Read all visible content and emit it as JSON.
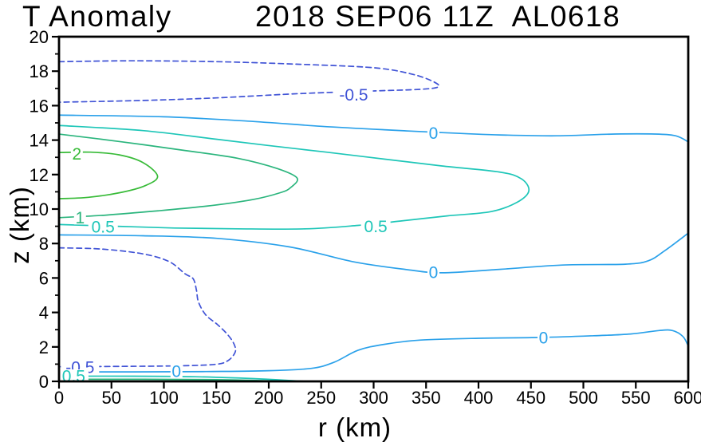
{
  "title": {
    "left": "T Anomaly",
    "right": "2018 SEP06 11Z  AL0618"
  },
  "axes": {
    "x": {
      "label": "r (km)",
      "min": 0,
      "max": 600,
      "ticks": [
        0,
        50,
        100,
        150,
        200,
        250,
        300,
        350,
        400,
        450,
        500,
        550,
        600
      ]
    },
    "y": {
      "label": "z (km)",
      "min": 0,
      "max": 20,
      "ticks": [
        0,
        2,
        4,
        6,
        8,
        10,
        12,
        14,
        16,
        18,
        20
      ],
      "minor_ticks": [
        1,
        3,
        5,
        7,
        9,
        11,
        13,
        15,
        17,
        19
      ]
    }
  },
  "colors": {
    "frame": "#000000",
    "neg05": "#4053d6",
    "zero": "#2aa1ea",
    "pos05": "#1ec6b8",
    "pos1": "#2bb57d",
    "pos2": "#38bb38"
  },
  "chart_data": {
    "type": "contour",
    "title": "T Anomaly",
    "subtitle": "2018 SEP06 11Z  AL0618",
    "xlabel": "r (km)",
    "ylabel": "z (km)",
    "xlim": [
      0,
      600
    ],
    "ylim": [
      0,
      20
    ],
    "levels": [
      -0.5,
      0,
      0.5,
      1,
      2
    ],
    "grid": false,
    "legend": "none",
    "contours": [
      {
        "level": -0.5,
        "color": "#4053d6",
        "style": "dashed",
        "points": [
          [
            0,
            18.55
          ],
          [
            70,
            18.6
          ],
          [
            150,
            18.55
          ],
          [
            230,
            18.4
          ],
          [
            300,
            18.2
          ],
          [
            335,
            17.85
          ],
          [
            355,
            17.45
          ],
          [
            362,
            17.1
          ],
          [
            345,
            16.95
          ],
          [
            300,
            16.85
          ],
          [
            230,
            16.7
          ],
          [
            150,
            16.45
          ],
          [
            80,
            16.3
          ],
          [
            0,
            16.2
          ]
        ]
      },
      {
        "level": -0.5,
        "color": "#4053d6",
        "style": "dashed",
        "points": [
          [
            0,
            7.75
          ],
          [
            40,
            7.68
          ],
          [
            80,
            7.4
          ],
          [
            105,
            6.95
          ],
          [
            120,
            6.25
          ],
          [
            128,
            5.95
          ],
          [
            131,
            5.3
          ],
          [
            133,
            4.6
          ],
          [
            140,
            3.85
          ],
          [
            151,
            3.3
          ],
          [
            161,
            2.7
          ],
          [
            167,
            2.15
          ],
          [
            168,
            1.7
          ],
          [
            161,
            1.2
          ],
          [
            148,
            0.98
          ],
          [
            110,
            0.9
          ],
          [
            60,
            0.87
          ],
          [
            0,
            0.85
          ]
        ]
      },
      {
        "level": 0,
        "color": "#2aa1ea",
        "style": "solid",
        "points": [
          [
            0,
            15.45
          ],
          [
            100,
            15.35
          ],
          [
            180,
            15.1
          ],
          [
            250,
            14.8
          ],
          [
            310,
            14.6
          ],
          [
            360,
            14.45
          ],
          [
            420,
            14.3
          ],
          [
            475,
            14.25
          ],
          [
            530,
            14.35
          ],
          [
            568,
            14.35
          ],
          [
            588,
            14.25
          ],
          [
            600,
            13.9
          ]
        ]
      },
      {
        "level": 0,
        "color": "#2aa1ea",
        "style": "solid",
        "points": [
          [
            0,
            8.5
          ],
          [
            80,
            8.45
          ],
          [
            150,
            8.3
          ],
          [
            220,
            7.8
          ],
          [
            280,
            6.95
          ],
          [
            330,
            6.5
          ],
          [
            365,
            6.3
          ],
          [
            420,
            6.5
          ],
          [
            480,
            6.75
          ],
          [
            540,
            6.8
          ],
          [
            562,
            7.0
          ],
          [
            578,
            7.6
          ],
          [
            600,
            8.6
          ]
        ]
      },
      {
        "level": 0,
        "color": "#2aa1ea",
        "style": "solid",
        "points": [
          [
            0,
            0.55
          ],
          [
            70,
            0.55
          ],
          [
            140,
            0.57
          ],
          [
            200,
            0.62
          ],
          [
            240,
            0.75
          ],
          [
            262,
            1.1
          ],
          [
            285,
            1.8
          ],
          [
            310,
            2.15
          ],
          [
            345,
            2.4
          ],
          [
            400,
            2.5
          ],
          [
            460,
            2.55
          ],
          [
            510,
            2.65
          ],
          [
            545,
            2.75
          ],
          [
            572,
            2.95
          ],
          [
            585,
            2.95
          ],
          [
            595,
            2.6
          ],
          [
            600,
            2.05
          ]
        ]
      },
      {
        "level": 0.5,
        "color": "#1ec6b8",
        "style": "solid",
        "points": [
          [
            0,
            14.85
          ],
          [
            80,
            14.55
          ],
          [
            150,
            14.05
          ],
          [
            205,
            13.65
          ],
          [
            255,
            13.3
          ],
          [
            310,
            12.9
          ],
          [
            365,
            12.5
          ],
          [
            420,
            12.15
          ],
          [
            441,
            11.75
          ],
          [
            448,
            11.05
          ],
          [
            437,
            10.4
          ],
          [
            412,
            9.85
          ],
          [
            370,
            9.6
          ],
          [
            325,
            9.3
          ],
          [
            285,
            9.05
          ],
          [
            235,
            8.85
          ],
          [
            170,
            8.85
          ],
          [
            110,
            8.9
          ],
          [
            55,
            9.0
          ],
          [
            0,
            9.1
          ]
        ]
      },
      {
        "level": 0.5,
        "color": "#1ec6b8",
        "style": "solid",
        "points": [
          [
            0,
            0.3
          ],
          [
            70,
            0.3
          ],
          [
            130,
            0.27
          ],
          [
            185,
            0.16
          ],
          [
            235,
            0.0
          ]
        ]
      },
      {
        "level": 1,
        "color": "#2bb57d",
        "style": "solid",
        "points": [
          [
            0,
            14.35
          ],
          [
            60,
            13.9
          ],
          [
            120,
            13.4
          ],
          [
            170,
            12.95
          ],
          [
            208,
            12.35
          ],
          [
            227,
            11.8
          ],
          [
            221,
            11.25
          ],
          [
            211,
            10.95
          ],
          [
            185,
            10.55
          ],
          [
            145,
            10.2
          ],
          [
            95,
            9.9
          ],
          [
            45,
            9.65
          ],
          [
            0,
            9.5
          ]
        ]
      },
      {
        "level": 1,
        "color": "#2bb57d",
        "style": "solid",
        "points": [
          [
            0,
            0.12
          ],
          [
            80,
            0.12
          ],
          [
            150,
            0.1
          ],
          [
            210,
            0.02
          ]
        ]
      },
      {
        "level": 2,
        "color": "#38bb38",
        "style": "solid",
        "points": [
          [
            0,
            13.28
          ],
          [
            30,
            13.3
          ],
          [
            57,
            13.15
          ],
          [
            80,
            12.7
          ],
          [
            94,
            11.9
          ],
          [
            82,
            11.35
          ],
          [
            58,
            10.95
          ],
          [
            28,
            10.68
          ],
          [
            0,
            10.6
          ]
        ]
      }
    ],
    "contour_labels": [
      {
        "text": "-0.5",
        "r": 281,
        "z": 16.62,
        "color": "#4053d6"
      },
      {
        "text": "-0.5",
        "r": 20,
        "z": 0.82,
        "color": "#4053d6"
      },
      {
        "text": "0",
        "r": 357,
        "z": 14.4,
        "color": "#2aa1ea"
      },
      {
        "text": "0",
        "r": 357,
        "z": 6.32,
        "color": "#2aa1ea"
      },
      {
        "text": "0",
        "r": 462,
        "z": 2.52,
        "color": "#2aa1ea"
      },
      {
        "text": "0",
        "r": 112,
        "z": 0.57,
        "color": "#2aa1ea"
      },
      {
        "text": "0.5",
        "r": 42,
        "z": 8.95,
        "color": "#1ec6b8"
      },
      {
        "text": "0.5",
        "r": 302,
        "z": 8.98,
        "color": "#1ec6b8"
      },
      {
        "text": "0.5",
        "r": 14,
        "z": 0.3,
        "color": "#1ec6b8"
      },
      {
        "text": "1",
        "r": 20,
        "z": 9.5,
        "color": "#2bb57d"
      },
      {
        "text": "2",
        "r": 17,
        "z": 13.2,
        "color": "#38bb38"
      }
    ]
  }
}
